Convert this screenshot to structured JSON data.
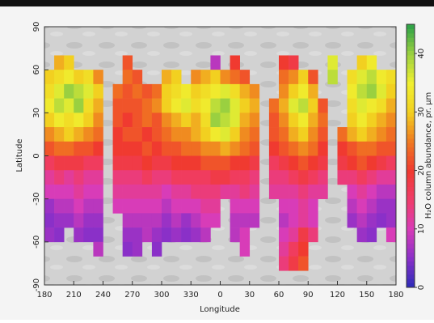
{
  "chart_data": {
    "type": "heatmap",
    "x_label": "Longitude",
    "y_label": "Latitude",
    "colorbar_label": "H₂O column abundance, pr. μm",
    "xlim": [
      180,
      540
    ],
    "xticks": [
      180,
      210,
      240,
      270,
      300,
      330,
      {
        "value": 360,
        "label": "0"
      },
      {
        "value": 390,
        "label": "30"
      },
      {
        "value": 420,
        "label": "60"
      },
      {
        "value": 450,
        "label": "90"
      },
      {
        "value": 480,
        "label": "120"
      },
      {
        "value": 510,
        "label": "150"
      },
      {
        "value": 540,
        "label": "180"
      }
    ],
    "ylim": [
      -90,
      90
    ],
    "yticks": [
      -90,
      -60,
      -30,
      0,
      30,
      60,
      90
    ],
    "zlim": [
      0,
      45
    ],
    "zticks": [
      0,
      10,
      20,
      30,
      40
    ],
    "colors": [
      "#2c2cb8",
      "#8a30c8",
      "#d83cb8",
      "#f03c6a",
      "#f03a30",
      "#f07a20",
      "#f2d020",
      "#f0f030",
      "#9ad040",
      "#2aa048"
    ],
    "x": [
      185,
      195,
      205,
      215,
      225,
      235,
      245,
      255,
      265,
      275,
      285,
      295,
      305,
      315,
      325,
      335,
      345,
      355,
      365,
      375,
      385,
      395,
      405,
      415,
      425,
      435,
      445,
      455,
      465,
      475,
      485,
      495,
      505,
      515,
      525,
      535
    ],
    "y": [
      65,
      55,
      45,
      35,
      25,
      15,
      5,
      -5,
      -15,
      -25,
      -35,
      -45,
      -55,
      -65,
      -75
    ],
    "z": [
      [
        null,
        28,
        30,
        null,
        null,
        null,
        null,
        null,
        22,
        null,
        null,
        null,
        null,
        null,
        null,
        null,
        null,
        8,
        null,
        20,
        null,
        null,
        null,
        null,
        20,
        18,
        null,
        null,
        null,
        36,
        null,
        null,
        30,
        34,
        null,
        null
      ],
      [
        30,
        32,
        34,
        30,
        32,
        26,
        null,
        null,
        24,
        22,
        null,
        null,
        28,
        30,
        null,
        26,
        28,
        30,
        26,
        24,
        22,
        null,
        null,
        null,
        24,
        26,
        30,
        22,
        null,
        38,
        null,
        32,
        36,
        38,
        34,
        32
      ],
      [
        32,
        36,
        40,
        38,
        36,
        30,
        null,
        24,
        22,
        24,
        22,
        24,
        30,
        32,
        34,
        30,
        32,
        34,
        36,
        32,
        28,
        26,
        null,
        null,
        26,
        30,
        34,
        28,
        null,
        null,
        null,
        34,
        38,
        40,
        36,
        30
      ],
      [
        34,
        38,
        36,
        40,
        32,
        28,
        null,
        22,
        22,
        22,
        24,
        26,
        30,
        34,
        36,
        32,
        34,
        38,
        40,
        36,
        30,
        28,
        null,
        24,
        28,
        36,
        38,
        30,
        22,
        null,
        null,
        32,
        36,
        34,
        32,
        28
      ],
      [
        30,
        34,
        32,
        34,
        30,
        26,
        null,
        22,
        20,
        22,
        24,
        22,
        26,
        28,
        30,
        28,
        32,
        40,
        38,
        36,
        28,
        26,
        null,
        22,
        26,
        30,
        34,
        28,
        24,
        null,
        null,
        30,
        34,
        30,
        28,
        26
      ],
      [
        26,
        28,
        30,
        28,
        26,
        24,
        null,
        20,
        22,
        22,
        20,
        22,
        24,
        26,
        26,
        28,
        30,
        34,
        36,
        30,
        26,
        24,
        null,
        22,
        24,
        28,
        30,
        26,
        22,
        null,
        24,
        28,
        30,
        28,
        26,
        24
      ],
      [
        22,
        24,
        24,
        22,
        22,
        20,
        null,
        20,
        20,
        20,
        22,
        20,
        22,
        22,
        24,
        24,
        26,
        26,
        28,
        26,
        24,
        22,
        null,
        20,
        22,
        24,
        26,
        24,
        20,
        null,
        20,
        22,
        24,
        24,
        22,
        22
      ],
      [
        16,
        18,
        18,
        18,
        16,
        16,
        null,
        18,
        18,
        18,
        20,
        18,
        18,
        20,
        20,
        20,
        22,
        22,
        22,
        20,
        20,
        18,
        null,
        16,
        18,
        20,
        22,
        20,
        18,
        null,
        18,
        20,
        22,
        20,
        18,
        16
      ],
      [
        12,
        14,
        12,
        14,
        12,
        12,
        null,
        14,
        14,
        14,
        16,
        14,
        14,
        16,
        16,
        16,
        16,
        18,
        18,
        16,
        16,
        14,
        null,
        14,
        14,
        16,
        18,
        16,
        14,
        null,
        14,
        14,
        16,
        14,
        12,
        12
      ],
      [
        10,
        10,
        10,
        12,
        10,
        10,
        null,
        12,
        12,
        12,
        12,
        12,
        10,
        12,
        12,
        14,
        14,
        14,
        12,
        12,
        14,
        12,
        null,
        12,
        12,
        12,
        14,
        12,
        12,
        null,
        null,
        10,
        12,
        10,
        8,
        8
      ],
      [
        6,
        8,
        8,
        10,
        8,
        8,
        null,
        10,
        10,
        10,
        10,
        10,
        8,
        10,
        10,
        10,
        12,
        12,
        null,
        10,
        10,
        10,
        null,
        null,
        10,
        10,
        12,
        10,
        null,
        null,
        null,
        8,
        10,
        8,
        6,
        6
      ],
      [
        5,
        6,
        6,
        8,
        6,
        6,
        null,
        null,
        8,
        8,
        8,
        8,
        6,
        8,
        6,
        8,
        10,
        10,
        null,
        8,
        8,
        8,
        null,
        null,
        8,
        10,
        12,
        10,
        null,
        null,
        null,
        6,
        8,
        6,
        5,
        6
      ],
      [
        6,
        5,
        null,
        6,
        5,
        5,
        null,
        null,
        6,
        6,
        8,
        6,
        5,
        6,
        5,
        6,
        8,
        null,
        null,
        8,
        10,
        null,
        null,
        null,
        10,
        12,
        18,
        14,
        null,
        null,
        null,
        null,
        6,
        5,
        null,
        10
      ],
      [
        null,
        null,
        null,
        null,
        null,
        8,
        null,
        null,
        5,
        6,
        null,
        5,
        null,
        null,
        null,
        null,
        null,
        null,
        null,
        null,
        10,
        null,
        null,
        null,
        12,
        16,
        20,
        null,
        null,
        null,
        null,
        null,
        null,
        null,
        null,
        null
      ],
      [
        null,
        null,
        null,
        null,
        null,
        null,
        null,
        null,
        null,
        null,
        null,
        null,
        null,
        null,
        null,
        null,
        null,
        null,
        null,
        null,
        null,
        null,
        null,
        null,
        14,
        18,
        22,
        null,
        null,
        null,
        null,
        null,
        null,
        null,
        null,
        null
      ]
    ]
  }
}
